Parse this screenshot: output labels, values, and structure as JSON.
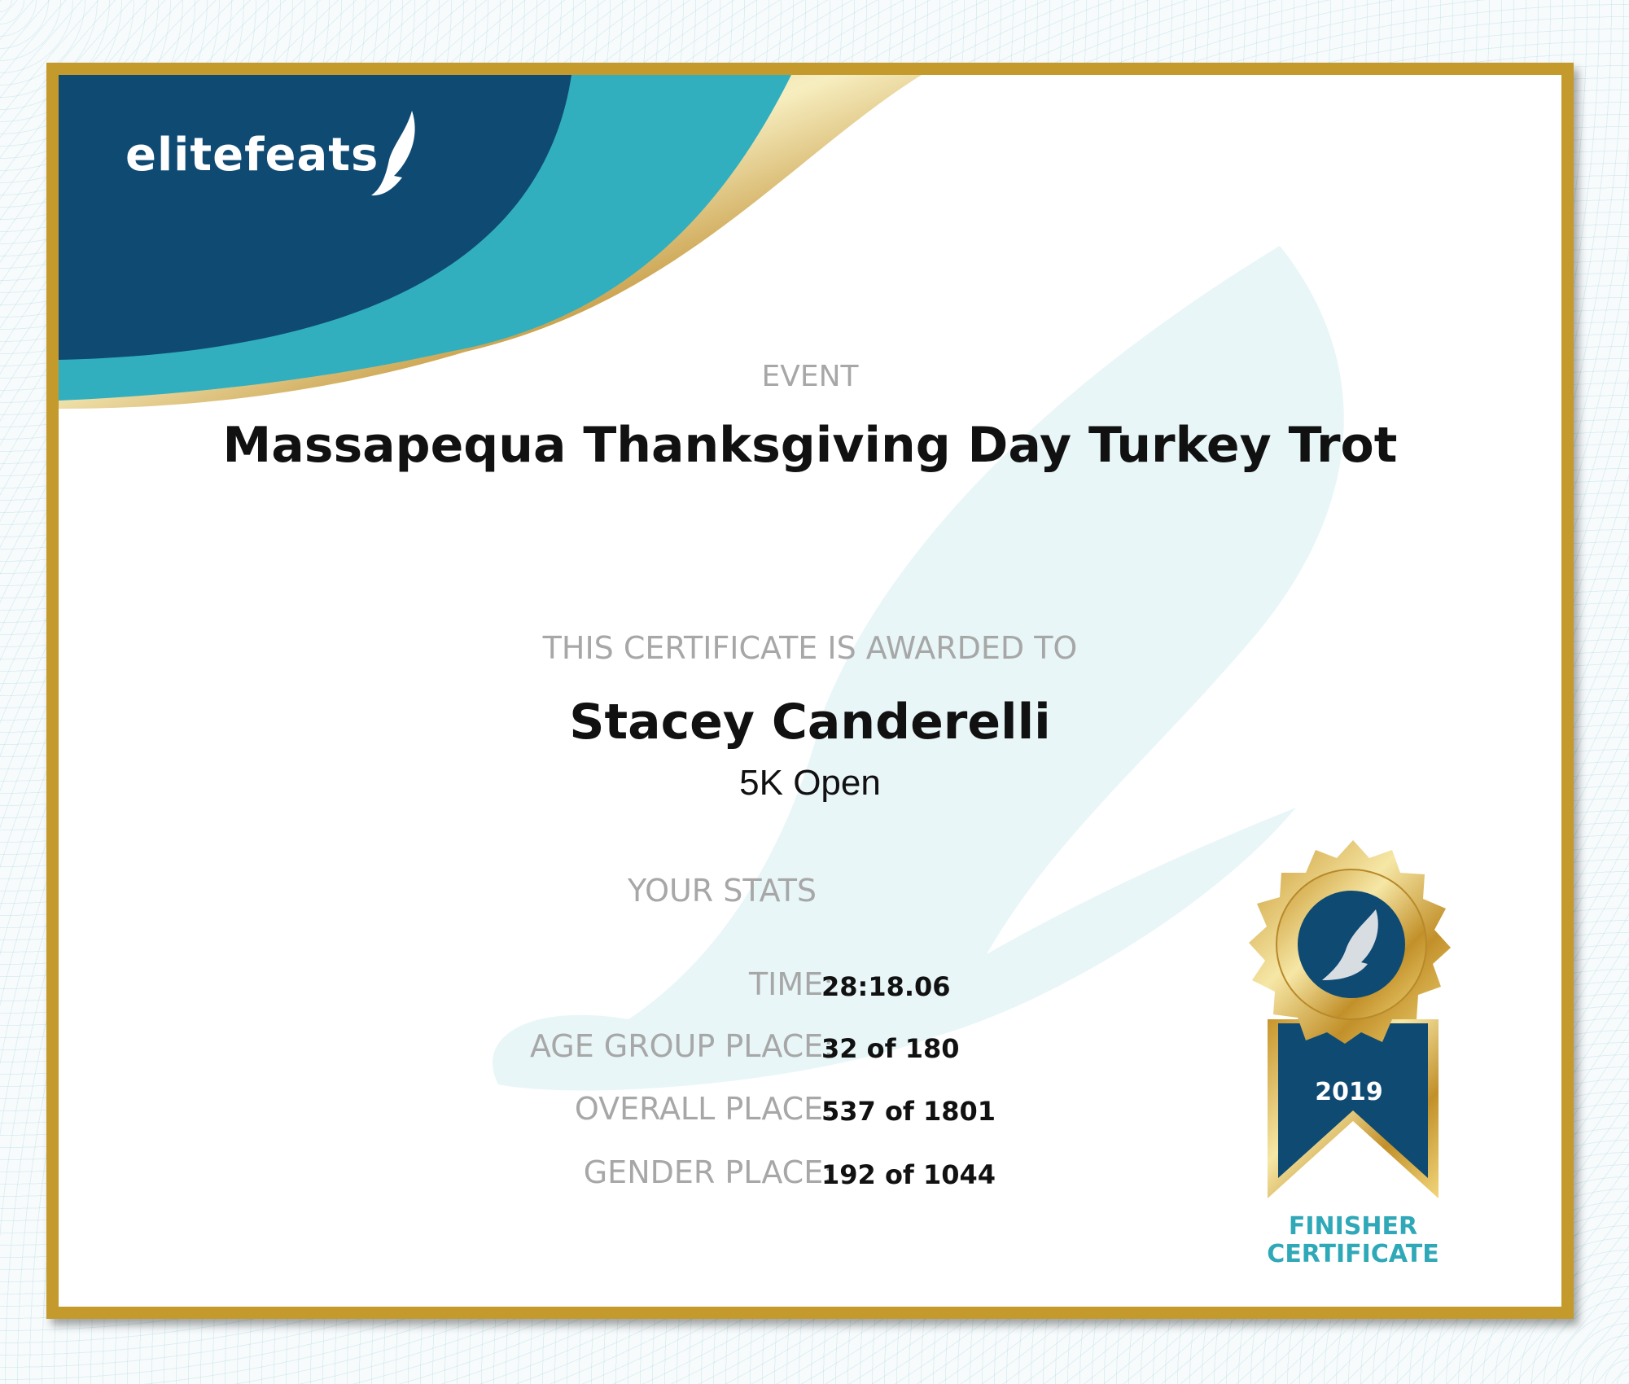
{
  "brand": {
    "logo_text": "elitefeats",
    "navy": "#0f4a73",
    "teal": "#31afbf",
    "gold": "#c49a2c"
  },
  "event": {
    "label": "EVENT",
    "title": "Massapequa Thanksgiving Day Turkey Trot"
  },
  "award": {
    "label": "THIS CERTIFICATE IS AWARDED TO",
    "name": "Stacey Canderelli",
    "division": "5K Open"
  },
  "stats": {
    "label": "YOUR STATS",
    "rows": [
      {
        "label": "TIME:",
        "value": "28:18.06"
      },
      {
        "label": "AGE GROUP PLACE:",
        "value": "32 of 180"
      },
      {
        "label": "OVERALL PLACE:",
        "value": "537 of 1801"
      },
      {
        "label": "GENDER PLACE:",
        "value": "192 of 1044"
      }
    ]
  },
  "badge": {
    "year": "2019",
    "line1": "FINISHER",
    "line2": "CERTIFICATE",
    "icon": "winged-shoe-icon"
  }
}
